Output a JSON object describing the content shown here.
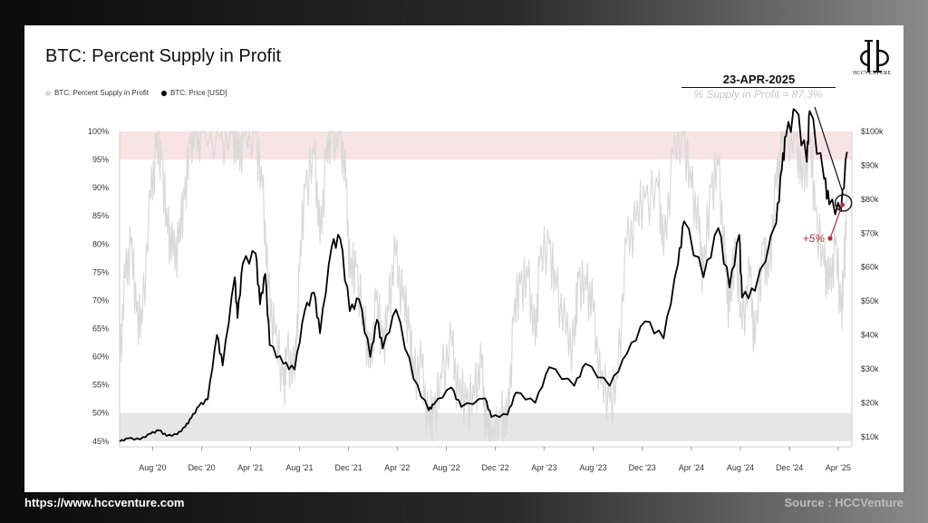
{
  "footer": {
    "website": "https://www.hccventure.com",
    "source": "Source : HCCVenture"
  },
  "logo": {
    "text": "HCCVENTURE"
  },
  "callout": {
    "date": "23-APR-2025",
    "detail": "% Supply in Profit = 87.3%",
    "change_label": "+5%"
  },
  "colors": {
    "supply_series": "#d9d9d9",
    "price_series": "#000000",
    "top_band": "#f8e4e4",
    "bottom_band": "#e6e6e6",
    "annotation": "#b03040"
  },
  "chart_data": {
    "type": "line",
    "title": "BTC: Percent Supply in Profit",
    "legend_placement": "top-left",
    "x_tick_labels": [
      "Aug '20",
      "Dec '20",
      "Apr '21",
      "Aug '21",
      "Dec '21",
      "Apr '22",
      "Aug '22",
      "Dec '22",
      "Apr '23",
      "Aug '23",
      "Dec '23",
      "Apr '24",
      "Aug '24",
      "Dec '24",
      "Apr '25"
    ],
    "x_ticks": [
      "2020-08-01",
      "2020-12-01",
      "2021-04-01",
      "2021-08-01",
      "2021-12-01",
      "2022-04-01",
      "2022-08-01",
      "2022-12-01",
      "2023-04-01",
      "2023-08-01",
      "2023-12-01",
      "2024-04-01",
      "2024-08-01",
      "2024-12-01",
      "2025-04-01"
    ],
    "xlim": [
      "2020-05-11",
      "2025-05-05"
    ],
    "y_left": {
      "ylim": [
        44,
        100
      ],
      "ticks": [
        45,
        50,
        55,
        60,
        65,
        70,
        75,
        80,
        85,
        90,
        95,
        100
      ],
      "tick_labels": [
        "45%",
        "50%",
        "55%",
        "60%",
        "65%",
        "70%",
        "75%",
        "80%",
        "85%",
        "90%",
        "95%",
        "100%"
      ]
    },
    "y_right": {
      "ylim": [
        7000,
        100000
      ],
      "ticks": [
        10000,
        20000,
        30000,
        40000,
        50000,
        60000,
        70000,
        80000,
        90000,
        100000
      ],
      "tick_labels": [
        "$10k",
        "$20k",
        "$30k",
        "$40k",
        "$50k",
        "$60k",
        "$70k",
        "$80k",
        "$90k",
        "$100k"
      ]
    },
    "bands": [
      {
        "axis": "left",
        "from": 95,
        "to": 100
      },
      {
        "axis": "left",
        "from": 45,
        "to": 50
      }
    ],
    "series": [
      {
        "name": "BTC: Percent Supply in Profit",
        "axis": "left",
        "points": [
          [
            "2020-05-11",
            58
          ],
          [
            "2020-05-25",
            74
          ],
          [
            "2020-06-08",
            80
          ],
          [
            "2020-06-22",
            68
          ],
          [
            "2020-07-06",
            66
          ],
          [
            "2020-07-27",
            88
          ],
          [
            "2020-08-10",
            97
          ],
          [
            "2020-08-24",
            95
          ],
          [
            "2020-09-07",
            82
          ],
          [
            "2020-09-21",
            78
          ],
          [
            "2020-10-05",
            80
          ],
          [
            "2020-10-19",
            88
          ],
          [
            "2020-11-02",
            98
          ],
          [
            "2020-11-16",
            99.5
          ],
          [
            "2020-12-01",
            100
          ],
          [
            "2021-01-15",
            99
          ],
          [
            "2021-02-15",
            100
          ],
          [
            "2021-03-01",
            95
          ],
          [
            "2021-03-15",
            99
          ],
          [
            "2021-04-14",
            99.5
          ],
          [
            "2021-05-01",
            90
          ],
          [
            "2021-05-15",
            72
          ],
          [
            "2021-06-01",
            64
          ],
          [
            "2021-06-22",
            55
          ],
          [
            "2021-07-01",
            60
          ],
          [
            "2021-07-20",
            56
          ],
          [
            "2021-08-01",
            75
          ],
          [
            "2021-08-15",
            90
          ],
          [
            "2021-09-07",
            96
          ],
          [
            "2021-09-21",
            80
          ],
          [
            "2021-10-06",
            95
          ],
          [
            "2021-10-20",
            100
          ],
          [
            "2021-11-10",
            100
          ],
          [
            "2021-11-25",
            90
          ],
          [
            "2021-12-05",
            74
          ],
          [
            "2021-12-20",
            76
          ],
          [
            "2022-01-10",
            65
          ],
          [
            "2022-01-24",
            58
          ],
          [
            "2022-02-07",
            70
          ],
          [
            "2022-02-24",
            62
          ],
          [
            "2022-03-10",
            68
          ],
          [
            "2022-03-28",
            78
          ],
          [
            "2022-04-15",
            70
          ],
          [
            "2022-05-01",
            65
          ],
          [
            "2022-05-12",
            56
          ],
          [
            "2022-06-01",
            58
          ],
          [
            "2022-06-18",
            48
          ],
          [
            "2022-07-01",
            50
          ],
          [
            "2022-07-20",
            56
          ],
          [
            "2022-08-15",
            62
          ],
          [
            "2022-09-01",
            53
          ],
          [
            "2022-09-20",
            52
          ],
          [
            "2022-10-10",
            53
          ],
          [
            "2022-10-28",
            58
          ],
          [
            "2022-11-09",
            47
          ],
          [
            "2022-11-21",
            45
          ],
          [
            "2022-12-15",
            49
          ],
          [
            "2022-12-30",
            47
          ],
          [
            "2023-01-15",
            66
          ],
          [
            "2023-02-01",
            73
          ],
          [
            "2023-02-20",
            74
          ],
          [
            "2023-03-10",
            62
          ],
          [
            "2023-03-20",
            76
          ],
          [
            "2023-04-14",
            80
          ],
          [
            "2023-05-01",
            72
          ],
          [
            "2023-05-25",
            64
          ],
          [
            "2023-06-15",
            62
          ],
          [
            "2023-06-25",
            74
          ],
          [
            "2023-07-15",
            72
          ],
          [
            "2023-08-01",
            68
          ],
          [
            "2023-08-20",
            55
          ],
          [
            "2023-09-11",
            52
          ],
          [
            "2023-10-01",
            56
          ],
          [
            "2023-10-23",
            80
          ],
          [
            "2023-11-15",
            84
          ],
          [
            "2023-12-08",
            88
          ],
          [
            "2024-01-10",
            90
          ],
          [
            "2024-01-23",
            78
          ],
          [
            "2024-02-15",
            96
          ],
          [
            "2024-03-13",
            99.5
          ],
          [
            "2024-04-01",
            90
          ],
          [
            "2024-04-20",
            82
          ],
          [
            "2024-05-01",
            74
          ],
          [
            "2024-05-20",
            90
          ],
          [
            "2024-06-07",
            94
          ],
          [
            "2024-06-25",
            75
          ],
          [
            "2024-07-05",
            68
          ],
          [
            "2024-07-20",
            80
          ],
          [
            "2024-08-05",
            65
          ],
          [
            "2024-08-25",
            74
          ],
          [
            "2024-09-06",
            62
          ],
          [
            "2024-09-27",
            80
          ],
          [
            "2024-10-10",
            74
          ],
          [
            "2024-10-29",
            90
          ],
          [
            "2024-11-12",
            98
          ],
          [
            "2024-11-22",
            100
          ],
          [
            "2024-12-17",
            99
          ],
          [
            "2025-01-01",
            90
          ],
          [
            "2025-01-20",
            98
          ],
          [
            "2025-02-03",
            86
          ],
          [
            "2025-02-25",
            76
          ],
          [
            "2025-03-10",
            72
          ],
          [
            "2025-03-25",
            80
          ],
          [
            "2025-04-08",
            68
          ],
          [
            "2025-04-15",
            74
          ],
          [
            "2025-04-23",
            87.3
          ]
        ]
      },
      {
        "name": "BTC: Price [USD]",
        "axis": "right",
        "points": [
          [
            "2020-05-11",
            8600
          ],
          [
            "2020-06-01",
            9500
          ],
          [
            "2020-07-01",
            9200
          ],
          [
            "2020-07-27",
            10900
          ],
          [
            "2020-08-17",
            11900
          ],
          [
            "2020-09-05",
            10200
          ],
          [
            "2020-10-01",
            10700
          ],
          [
            "2020-10-21",
            12900
          ],
          [
            "2020-11-05",
            15500
          ],
          [
            "2020-11-24",
            19000
          ],
          [
            "2020-12-16",
            21000
          ],
          [
            "2021-01-08",
            40000
          ],
          [
            "2021-01-22",
            31000
          ],
          [
            "2021-02-21",
            57000
          ],
          [
            "2021-02-28",
            45000
          ],
          [
            "2021-03-13",
            61000
          ],
          [
            "2021-04-14",
            64000
          ],
          [
            "2021-04-25",
            49000
          ],
          [
            "2021-05-08",
            58000
          ],
          [
            "2021-05-19",
            37000
          ],
          [
            "2021-06-22",
            31500
          ],
          [
            "2021-07-20",
            29800
          ],
          [
            "2021-08-14",
            47000
          ],
          [
            "2021-09-06",
            52500
          ],
          [
            "2021-09-21",
            40500
          ],
          [
            "2021-10-20",
            66000
          ],
          [
            "2021-11-10",
            68500
          ],
          [
            "2021-12-04",
            47000
          ],
          [
            "2021-12-27",
            50500
          ],
          [
            "2022-01-24",
            33500
          ],
          [
            "2022-02-10",
            44500
          ],
          [
            "2022-02-24",
            36000
          ],
          [
            "2022-03-29",
            47500
          ],
          [
            "2022-05-12",
            27000
          ],
          [
            "2022-06-18",
            17800
          ],
          [
            "2022-07-01",
            19500
          ],
          [
            "2022-08-13",
            24500
          ],
          [
            "2022-09-07",
            18800
          ],
          [
            "2022-11-05",
            21300
          ],
          [
            "2022-11-21",
            15800
          ],
          [
            "2022-12-31",
            16500
          ],
          [
            "2023-01-21",
            23000
          ],
          [
            "2023-03-10",
            20000
          ],
          [
            "2023-04-14",
            30500
          ],
          [
            "2023-06-15",
            25000
          ],
          [
            "2023-07-13",
            31500
          ],
          [
            "2023-09-11",
            25000
          ],
          [
            "2023-10-24",
            34500
          ],
          [
            "2023-12-08",
            44000
          ],
          [
            "2024-01-23",
            39000
          ],
          [
            "2024-02-28",
            61000
          ],
          [
            "2024-03-14",
            73500
          ],
          [
            "2024-05-01",
            57000
          ],
          [
            "2024-06-07",
            71500
          ],
          [
            "2024-07-05",
            54000
          ],
          [
            "2024-07-29",
            69500
          ],
          [
            "2024-08-05",
            51000
          ],
          [
            "2024-09-06",
            53000
          ],
          [
            "2024-10-29",
            73000
          ],
          [
            "2024-11-12",
            89000
          ],
          [
            "2024-11-22",
            98500
          ],
          [
            "2024-12-17",
            106000
          ],
          [
            "2025-01-13",
            91000
          ],
          [
            "2025-01-20",
            106000
          ],
          [
            "2025-02-25",
            86000
          ],
          [
            "2025-03-10",
            78500
          ],
          [
            "2025-04-08",
            76500
          ],
          [
            "2025-04-23",
            94000
          ]
        ]
      }
    ]
  }
}
